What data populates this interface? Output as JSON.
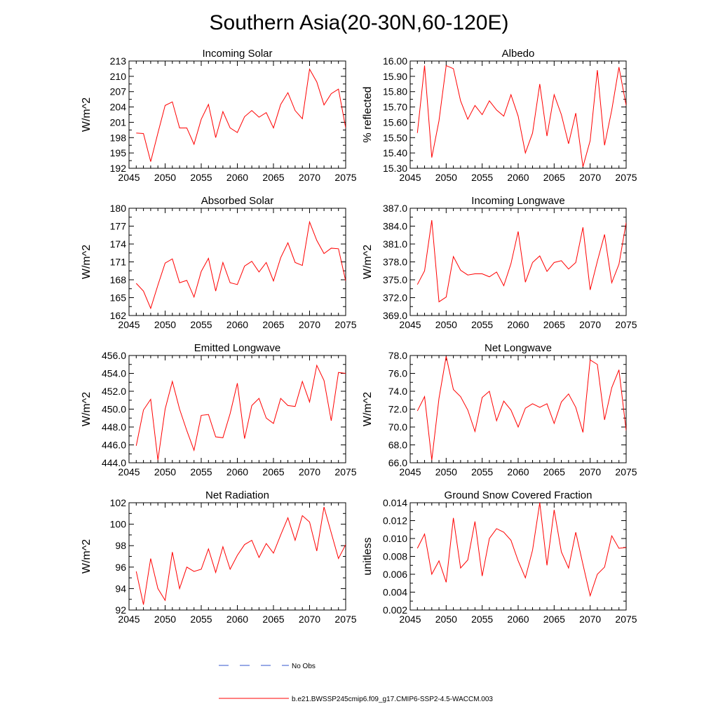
{
  "title": "Southern Asia(20-30N,60-120E)",
  "chart_data": [
    {
      "type": "line",
      "title": "Incoming Solar",
      "ylabel": "W/m^2",
      "xlim": [
        2045,
        2075
      ],
      "ylim": [
        192,
        213
      ],
      "xticks": [
        "2045",
        "2050",
        "2055",
        "2060",
        "2065",
        "2070",
        "2075"
      ],
      "yticks": [
        "192",
        "195",
        "198",
        "201",
        "204",
        "207",
        "210",
        "213"
      ],
      "x": [
        2046,
        2047,
        2048,
        2049,
        2050,
        2051,
        2052,
        2053,
        2054,
        2055,
        2056,
        2057,
        2058,
        2059,
        2060,
        2061,
        2062,
        2063,
        2064,
        2065,
        2066,
        2067,
        2068,
        2069,
        2070,
        2071,
        2072,
        2073,
        2074,
        2075
      ],
      "series": [
        {
          "values": [
            198.9,
            198.8,
            193.3,
            198.9,
            204.3,
            205.0,
            199.9,
            199.9,
            196.7,
            201.6,
            204.5,
            198.0,
            203.1,
            199.9,
            199.0,
            202.1,
            203.3,
            202.0,
            202.9,
            199.9,
            204.5,
            206.8,
            203.3,
            201.7,
            211.4,
            208.9,
            204.4,
            206.6,
            207.5,
            199.9
          ]
        }
      ]
    },
    {
      "type": "line",
      "title": "Albedo",
      "ylabel": "% reflected",
      "xlim": [
        2045,
        2075
      ],
      "ylim": [
        15.3,
        16.0
      ],
      "xticks": [
        "2045",
        "2050",
        "2055",
        "2060",
        "2065",
        "2070",
        "2075"
      ],
      "yticks": [
        "15.30",
        "15.40",
        "15.50",
        "15.60",
        "15.70",
        "15.80",
        "15.90",
        "16.00"
      ],
      "x": [
        2046,
        2047,
        2048,
        2049,
        2050,
        2051,
        2052,
        2053,
        2054,
        2055,
        2056,
        2057,
        2058,
        2059,
        2060,
        2061,
        2062,
        2063,
        2064,
        2065,
        2066,
        2067,
        2068,
        2069,
        2070,
        2071,
        2072,
        2073,
        2074,
        2075
      ],
      "series": [
        {
          "values": [
            15.53,
            15.97,
            15.37,
            15.61,
            15.97,
            15.95,
            15.74,
            15.62,
            15.71,
            15.65,
            15.74,
            15.68,
            15.64,
            15.78,
            15.64,
            15.4,
            15.53,
            15.85,
            15.51,
            15.78,
            15.65,
            15.46,
            15.66,
            15.31,
            15.48,
            15.94,
            15.45,
            15.68,
            15.96,
            15.71
          ]
        }
      ]
    },
    {
      "type": "line",
      "title": "Absorbed Solar",
      "ylabel": "W/m^2",
      "xlim": [
        2045,
        2075
      ],
      "ylim": [
        162,
        180
      ],
      "xticks": [
        "2045",
        "2050",
        "2055",
        "2060",
        "2065",
        "2070",
        "2075"
      ],
      "yticks": [
        "162",
        "165",
        "168",
        "171",
        "174",
        "177",
        "180"
      ],
      "x": [
        2046,
        2047,
        2048,
        2049,
        2050,
        2051,
        2052,
        2053,
        2054,
        2055,
        2056,
        2057,
        2058,
        2059,
        2060,
        2061,
        2062,
        2063,
        2064,
        2065,
        2066,
        2067,
        2068,
        2069,
        2070,
        2071,
        2072,
        2073,
        2074,
        2075
      ],
      "series": [
        {
          "values": [
            167.4,
            166.1,
            163.2,
            167.1,
            170.8,
            171.5,
            167.5,
            167.9,
            165.1,
            169.4,
            171.6,
            166.1,
            170.9,
            167.5,
            167.2,
            170.3,
            171.1,
            169.3,
            170.9,
            167.8,
            171.7,
            174.2,
            170.9,
            170.4,
            177.7,
            174.6,
            172.4,
            173.3,
            173.2,
            167.8
          ]
        }
      ]
    },
    {
      "type": "line",
      "title": "Incoming Longwave",
      "ylabel": "W/m^2",
      "xlim": [
        2045,
        2075
      ],
      "ylim": [
        369.0,
        387.0
      ],
      "xticks": [
        "2045",
        "2050",
        "2055",
        "2060",
        "2065",
        "2070",
        "2075"
      ],
      "yticks": [
        "369.0",
        "372.0",
        "375.0",
        "378.0",
        "381.0",
        "384.0",
        "387.0"
      ],
      "x": [
        2046,
        2047,
        2048,
        2049,
        2050,
        2051,
        2052,
        2053,
        2054,
        2055,
        2056,
        2057,
        2058,
        2059,
        2060,
        2061,
        2062,
        2063,
        2064,
        2065,
        2066,
        2067,
        2068,
        2069,
        2070,
        2071,
        2072,
        2073,
        2074,
        2075
      ],
      "series": [
        {
          "values": [
            374.2,
            376.5,
            385.0,
            371.3,
            372.1,
            378.9,
            376.6,
            375.8,
            376.0,
            376.0,
            375.5,
            376.3,
            374.0,
            377.7,
            383.1,
            374.6,
            377.9,
            379.0,
            376.4,
            377.9,
            378.2,
            376.8,
            377.9,
            383.8,
            373.3,
            378.1,
            382.6,
            374.5,
            377.6,
            384.6
          ]
        }
      ]
    },
    {
      "type": "line",
      "title": "Emitted Longwave",
      "ylabel": "W/m^2",
      "xlim": [
        2045,
        2075
      ],
      "ylim": [
        444.0,
        456.0
      ],
      "xticks": [
        "2045",
        "2050",
        "2055",
        "2060",
        "2065",
        "2070",
        "2075"
      ],
      "yticks": [
        "444.0",
        "446.0",
        "448.0",
        "450.0",
        "452.0",
        "454.0",
        "456.0"
      ],
      "x": [
        2046,
        2047,
        2048,
        2049,
        2050,
        2051,
        2052,
        2053,
        2054,
        2055,
        2056,
        2057,
        2058,
        2059,
        2060,
        2061,
        2062,
        2063,
        2064,
        2065,
        2066,
        2067,
        2068,
        2069,
        2070,
        2071,
        2072,
        2073,
        2074,
        2075
      ],
      "series": [
        {
          "values": [
            445.9,
            449.9,
            451.1,
            444.3,
            450.0,
            453.1,
            450.0,
            447.6,
            445.4,
            449.3,
            449.4,
            446.9,
            446.8,
            449.5,
            452.9,
            446.7,
            450.4,
            451.2,
            449.0,
            448.4,
            451.2,
            450.4,
            450.3,
            453.1,
            450.8,
            454.9,
            453.2,
            448.7,
            454.1,
            454.0
          ]
        }
      ]
    },
    {
      "type": "line",
      "title": "Net Longwave",
      "ylabel": "W/m^2",
      "xlim": [
        2045,
        2075
      ],
      "ylim": [
        66.0,
        78.0
      ],
      "xticks": [
        "2045",
        "2050",
        "2055",
        "2060",
        "2065",
        "2070",
        "2075"
      ],
      "yticks": [
        "66.0",
        "68.0",
        "70.0",
        "72.0",
        "74.0",
        "76.0",
        "78.0"
      ],
      "x": [
        2046,
        2047,
        2048,
        2049,
        2050,
        2051,
        2052,
        2053,
        2054,
        2055,
        2056,
        2057,
        2058,
        2059,
        2060,
        2061,
        2062,
        2063,
        2064,
        2065,
        2066,
        2067,
        2068,
        2069,
        2070,
        2071,
        2072,
        2073,
        2074,
        2075
      ],
      "series": [
        {
          "values": [
            71.8,
            73.4,
            66.3,
            73.2,
            77.9,
            74.2,
            73.4,
            71.9,
            69.5,
            73.3,
            74.0,
            70.7,
            72.9,
            71.9,
            70.0,
            72.1,
            72.6,
            72.2,
            72.6,
            70.4,
            72.8,
            73.7,
            72.2,
            69.4,
            77.5,
            77.0,
            70.8,
            74.4,
            76.4,
            69.6
          ]
        }
      ]
    },
    {
      "type": "line",
      "title": "Net Radiation",
      "ylabel": "W/m^2",
      "xlim": [
        2045,
        2075
      ],
      "ylim": [
        92,
        102
      ],
      "xticks": [
        "2045",
        "2050",
        "2055",
        "2060",
        "2065",
        "2070",
        "2075"
      ],
      "yticks": [
        "92",
        "94",
        "96",
        "98",
        "100",
        "102"
      ],
      "x": [
        2046,
        2047,
        2048,
        2049,
        2050,
        2051,
        2052,
        2053,
        2054,
        2055,
        2056,
        2057,
        2058,
        2059,
        2060,
        2061,
        2062,
        2063,
        2064,
        2065,
        2066,
        2067,
        2068,
        2069,
        2070,
        2071,
        2072,
        2073,
        2074,
        2075
      ],
      "series": [
        {
          "values": [
            95.6,
            92.5,
            96.8,
            94.0,
            92.9,
            97.4,
            94.0,
            96.0,
            95.6,
            95.8,
            97.7,
            95.5,
            97.9,
            95.8,
            97.1,
            98.1,
            98.5,
            96.9,
            98.2,
            97.3,
            99.0,
            100.6,
            98.5,
            100.8,
            100.2,
            97.5,
            101.6,
            99.2,
            96.8,
            98.1
          ]
        }
      ]
    },
    {
      "type": "line",
      "title": "Ground Snow Covered Fraction",
      "ylabel": "unitless",
      "xlim": [
        2045,
        2075
      ],
      "ylim": [
        0.002,
        0.014
      ],
      "xticks": [
        "2045",
        "2050",
        "2055",
        "2060",
        "2065",
        "2070",
        "2075"
      ],
      "yticks": [
        "0.002",
        "0.004",
        "0.006",
        "0.008",
        "0.010",
        "0.012",
        "0.014"
      ],
      "x": [
        2046,
        2047,
        2048,
        2049,
        2050,
        2051,
        2052,
        2053,
        2054,
        2055,
        2056,
        2057,
        2058,
        2059,
        2060,
        2061,
        2062,
        2063,
        2064,
        2065,
        2066,
        2067,
        2068,
        2069,
        2070,
        2071,
        2072,
        2073,
        2074,
        2075
      ],
      "series": [
        {
          "values": [
            0.0089,
            0.0105,
            0.006,
            0.0075,
            0.0051,
            0.0123,
            0.0067,
            0.0076,
            0.0119,
            0.0058,
            0.01,
            0.0111,
            0.0107,
            0.0098,
            0.0075,
            0.0056,
            0.0087,
            0.014,
            0.007,
            0.0132,
            0.0085,
            0.0067,
            0.0107,
            0.0071,
            0.0036,
            0.006,
            0.0068,
            0.0103,
            0.0089,
            0.009
          ]
        }
      ]
    }
  ],
  "legend": {
    "placement": "bottom-center",
    "items": [
      {
        "label": "No Obs",
        "color": "#3355cc",
        "dashed": true
      },
      {
        "label": "b.e21.BWSSP245cmip6.f09_g17.CMIP6-SSP2-4.5-WACCM.003",
        "color": "#ff0000",
        "dashed": false
      }
    ]
  },
  "colors": {
    "series": "#ff0000",
    "axes": "#000000"
  }
}
